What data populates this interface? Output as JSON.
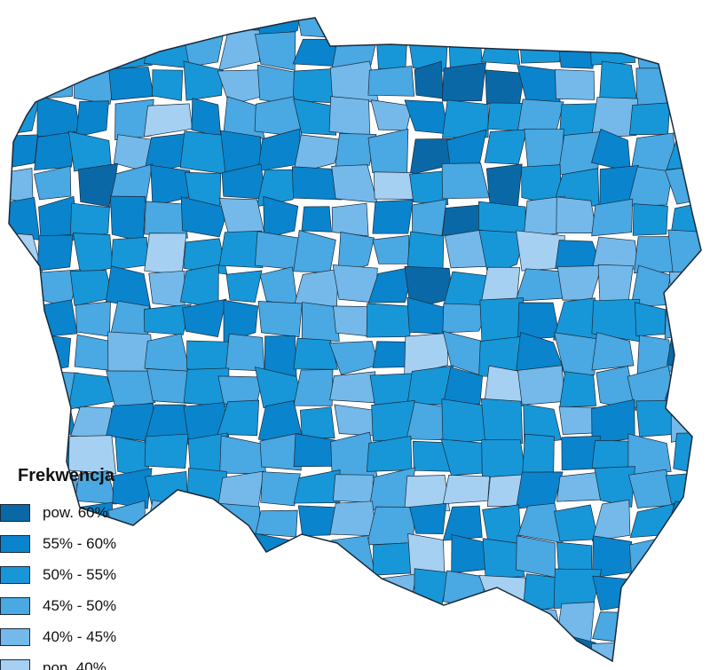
{
  "map": {
    "subject": "Poland counties voter turnout choropleth",
    "border_color": "#1a2a3a"
  },
  "legend": {
    "title": "Frekwencja",
    "items": [
      {
        "label": "pow. 60%",
        "color": "#0b68a6"
      },
      {
        "label": "55% - 60%",
        "color": "#0a84cc"
      },
      {
        "label": "50% - 55%",
        "color": "#1797d8"
      },
      {
        "label": "45% - 50%",
        "color": "#4aa8e2"
      },
      {
        "label": "40% - 45%",
        "color": "#74b9ea"
      },
      {
        "label": "pon. 40%",
        "color": "#a6d0f2"
      }
    ]
  }
}
